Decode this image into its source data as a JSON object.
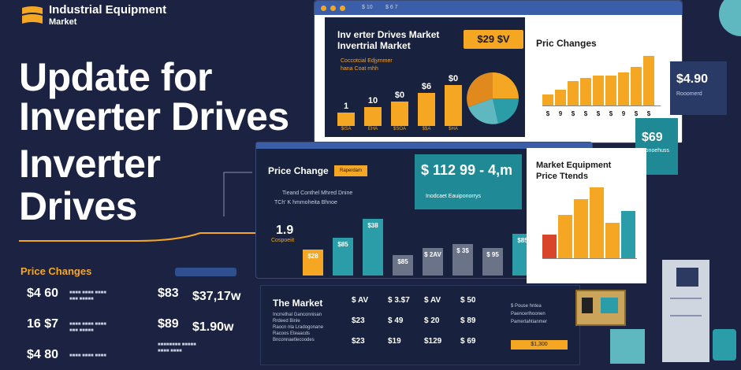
{
  "brand": {
    "name": "Industrial Equipment",
    "sub": "Market"
  },
  "hero": {
    "line1": "Update for",
    "line2": "Inverter Drives",
    "line3": "Inverter",
    "line4": "Drives"
  },
  "left_prices": {
    "title": "Price Changes",
    "rows": [
      {
        "left": "$4 60",
        "mid": "$83",
        "right": "$37,17w"
      },
      {
        "left": "16 $7",
        "mid": "$89",
        "right": "$1.90w"
      },
      {
        "left": "$4 80",
        "mid": "",
        "right": ""
      }
    ]
  },
  "top_window": {
    "tab1": "$ 10",
    "tab2": "$ 6 7",
    "title1": "Inv erter Drives Market",
    "title2": "Invertrial Market",
    "badge": "$29 $V",
    "sub1": "Coccotcial Edjymmer",
    "sub2": "hana Coat mhh",
    "bars": [
      {
        "label": "$ISA",
        "top": "1",
        "topb": "10",
        "value": 25
      },
      {
        "label": "EHA",
        "top": "10",
        "value": 35
      },
      {
        "label": "$SOA",
        "top": "$0",
        "value": 45
      },
      {
        "label": "$$A",
        "top": "$6",
        "value": 60
      },
      {
        "label": "$HA",
        "top": "$0",
        "value": 75
      }
    ]
  },
  "price_changes_card": {
    "title": "Pric Changes",
    "bars": [
      20,
      28,
      45,
      50,
      55,
      55,
      60,
      70,
      90
    ],
    "ticks": [
      "$",
      "9",
      "$",
      "$",
      "$",
      "$",
      "9",
      "$",
      "$"
    ]
  },
  "right_tile_1": {
    "value": "$4.90",
    "sub": "Rooomerd"
  },
  "right_tile_2": {
    "value": "$69",
    "sub": "Sonoehuss"
  },
  "mid_window": {
    "title": "Price Change",
    "tag": "Raperdam",
    "sub1": "Tieand Conthel Mhred Dnine",
    "sub2": "TCh' K hmmoheita Bhnoe",
    "big_value": "$ 112 99 - 4,m",
    "big_sub": "Inodcaet Eauiponorrys",
    "left_num": "1.9",
    "left_label": "Cospoeiit",
    "bars": [
      {
        "label": "$28",
        "value": 38,
        "color": "gold"
      },
      {
        "label": "$85",
        "value": 55,
        "color": "teal"
      },
      {
        "label": "$38",
        "value": 82,
        "color": "teal"
      },
      {
        "label": "$85",
        "value": 30,
        "color": "gray"
      },
      {
        "label": "$ 2AV",
        "value": 40,
        "color": "gray"
      },
      {
        "label": "$ 3$",
        "value": 45,
        "color": "gray"
      },
      {
        "label": "$ 95",
        "value": 40,
        "color": "gray"
      },
      {
        "label": "$85",
        "value": 60,
        "color": "teal"
      }
    ]
  },
  "trends_card": {
    "title1": "Market Equipment",
    "title2": "Price Ttends",
    "bars": [
      {
        "v": 30,
        "c": "red"
      },
      {
        "v": 55,
        "c": "gold"
      },
      {
        "v": 75,
        "c": "gold"
      },
      {
        "v": 90,
        "c": "gold"
      },
      {
        "v": 45,
        "c": "gold"
      },
      {
        "v": 60,
        "c": "teal"
      }
    ]
  },
  "market_table": {
    "title": "The Market",
    "lines": [
      "Incrrethal Ganconnisan",
      "Rrdeed Binle",
      "Raocn nla Lradogonane",
      "Racoos Eteaacds",
      "Bnconnaetlecoodes"
    ],
    "cols": [
      [
        "$ AV",
        "$23",
        "$23"
      ],
      [
        "$ 3.$7",
        "$ 49",
        "$19"
      ],
      [
        "$ AV",
        "$ 20",
        "$129"
      ],
      [
        "$ 50",
        "$ 89",
        "$ 69"
      ]
    ],
    "side": [
      "$ Pouse hntea",
      "Paencerlhoonen",
      "Pamertahtianmer"
    ],
    "btn": "$1,300"
  }
}
